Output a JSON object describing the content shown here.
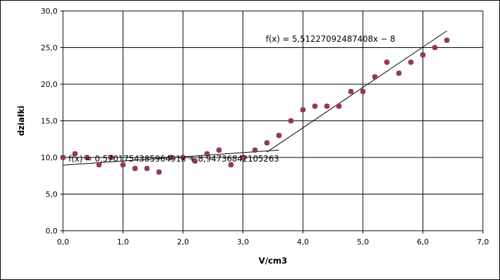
{
  "chart_data": {
    "type": "scatter",
    "title": "",
    "xlabel": "V/cm3",
    "ylabel": "działki",
    "xlim": [
      0,
      7
    ],
    "ylim": [
      0,
      30
    ],
    "x_ticks": [
      0,
      1,
      2,
      3,
      4,
      5,
      6,
      7
    ],
    "y_ticks": [
      0,
      5,
      10,
      15,
      20,
      25,
      30
    ],
    "x_tick_labels": [
      "0,0",
      "1,0",
      "2,0",
      "3,0",
      "4,0",
      "5,0",
      "6,0",
      "7,0"
    ],
    "y_tick_labels": [
      "0,0",
      "5,0",
      "10,0",
      "15,0",
      "20,0",
      "25,0",
      "30,0"
    ],
    "grid": true,
    "legend": "none",
    "marker_color": "#993366",
    "series": [
      {
        "points": [
          [
            0.0,
            10.0
          ],
          [
            0.2,
            10.5
          ],
          [
            0.4,
            10.0
          ],
          [
            0.6,
            9.0
          ],
          [
            0.8,
            10.0
          ],
          [
            1.0,
            9.0
          ],
          [
            1.2,
            8.5
          ],
          [
            1.4,
            8.5
          ],
          [
            1.6,
            8.0
          ],
          [
            1.8,
            10.0
          ],
          [
            2.0,
            10.0
          ],
          [
            2.2,
            9.5
          ],
          [
            2.4,
            10.5
          ],
          [
            2.6,
            11.0
          ],
          [
            2.8,
            9.0
          ],
          [
            3.0,
            10.0
          ],
          [
            3.2,
            11.0
          ],
          [
            3.4,
            12.0
          ],
          [
            3.6,
            13.0
          ],
          [
            3.8,
            15.0
          ],
          [
            4.0,
            16.5
          ],
          [
            4.2,
            17.0
          ],
          [
            4.4,
            17.0
          ],
          [
            4.6,
            17.0
          ],
          [
            4.8,
            19.0
          ],
          [
            5.0,
            19.0
          ],
          [
            5.2,
            21.0
          ],
          [
            5.4,
            23.0
          ],
          [
            5.6,
            21.5
          ],
          [
            5.8,
            23.0
          ],
          [
            6.0,
            24.0
          ],
          [
            6.2,
            25.0
          ],
          [
            6.4,
            26.0
          ]
        ]
      }
    ],
    "trendlines": [
      {
        "equation": "f(x) = 0,570175438596491x + 8,94736842105263",
        "slope": 0.570175438596491,
        "intercept": 8.94736842105263,
        "x_range": [
          0.0,
          3.6
        ]
      },
      {
        "equation": "f(x) = 5,51227092487408x − 8",
        "slope": 5.51227092487408,
        "intercept": -8,
        "x_range": [
          3.4,
          6.4
        ]
      }
    ]
  }
}
